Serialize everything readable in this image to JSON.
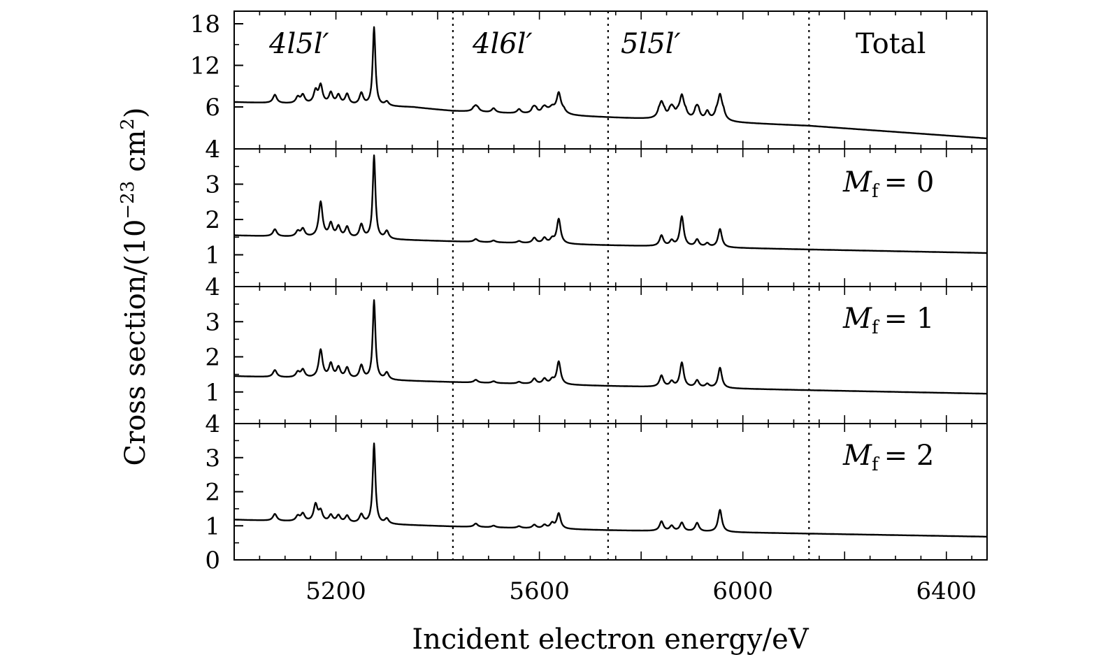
{
  "chart_data": {
    "type": "line",
    "xlabel": "Incident electron energy/eV",
    "ylabel": "Cross section/(10⁻²³ cm²)",
    "xlim": [
      5000,
      6480
    ],
    "xticks": [
      5200,
      5600,
      6000,
      6400
    ],
    "region_boundaries": [
      5430,
      5735,
      6130
    ],
    "region_labels": [
      "4l5l′",
      "4l6l′",
      "5l5l′"
    ],
    "line_color": "#000000",
    "panels": [
      {
        "name": "Total",
        "ylim": [
          4,
          19.5
        ],
        "yticks": [
          "4",
          "6",
          "12",
          "18"
        ],
        "tick_values": [
          4,
          6,
          12,
          18
        ],
        "baseline": [
          [
            5000,
            6.7
          ],
          [
            5430,
            5.8
          ],
          [
            5735,
            5.5
          ],
          [
            6130,
            5.1
          ],
          [
            6480,
            4.5
          ]
        ],
        "peaks": [
          [
            5080,
            1.2
          ],
          [
            5125,
            0.9
          ],
          [
            5135,
            1.2
          ],
          [
            5160,
            1.8
          ],
          [
            5170,
            2.6
          ],
          [
            5190,
            1.6
          ],
          [
            5205,
            1.3
          ],
          [
            5222,
            1.5
          ],
          [
            5250,
            1.7
          ],
          [
            5275,
            11.3
          ],
          [
            5300,
            0.6
          ],
          [
            5475,
            0.5
          ],
          [
            5510,
            0.2
          ],
          [
            5560,
            0.2
          ],
          [
            5590,
            0.5
          ],
          [
            5610,
            0.5
          ],
          [
            5625,
            0.4
          ],
          [
            5638,
            2.5
          ],
          [
            5840,
            1.4
          ],
          [
            5860,
            0.8
          ],
          [
            5880,
            2.4
          ],
          [
            5910,
            0.9
          ],
          [
            5930,
            0.4
          ],
          [
            5955,
            2.6
          ]
        ]
      },
      {
        "name": "M_f = 0",
        "ylim": [
          0.1,
          4
        ],
        "yticks": [
          "1",
          "2",
          "3",
          "4"
        ],
        "tick_values": [
          1,
          2,
          3,
          4
        ],
        "baseline": [
          [
            5000,
            1.55
          ],
          [
            5430,
            1.38
          ],
          [
            5735,
            1.27
          ],
          [
            6130,
            1.15
          ],
          [
            6480,
            1.05
          ]
        ],
        "peaks": [
          [
            5080,
            0.2
          ],
          [
            5125,
            0.15
          ],
          [
            5135,
            0.22
          ],
          [
            5170,
            1.0
          ],
          [
            5190,
            0.38
          ],
          [
            5205,
            0.3
          ],
          [
            5222,
            0.3
          ],
          [
            5250,
            0.38
          ],
          [
            5275,
            2.35
          ],
          [
            5300,
            0.22
          ],
          [
            5475,
            0.08
          ],
          [
            5510,
            0.05
          ],
          [
            5560,
            0.05
          ],
          [
            5590,
            0.15
          ],
          [
            5610,
            0.15
          ],
          [
            5625,
            0.12
          ],
          [
            5638,
            0.7
          ],
          [
            5840,
            0.3
          ],
          [
            5860,
            0.15
          ],
          [
            5880,
            0.85
          ],
          [
            5910,
            0.2
          ],
          [
            5930,
            0.1
          ],
          [
            5955,
            0.52
          ]
        ]
      },
      {
        "name": "M_f = 1",
        "ylim": [
          0.1,
          4
        ],
        "yticks": [
          "1",
          "2",
          "3",
          "4"
        ],
        "tick_values": [
          1,
          2,
          3,
          4
        ],
        "baseline": [
          [
            5000,
            1.45
          ],
          [
            5430,
            1.28
          ],
          [
            5735,
            1.17
          ],
          [
            6130,
            1.05
          ],
          [
            6480,
            0.95
          ]
        ],
        "peaks": [
          [
            5080,
            0.2
          ],
          [
            5125,
            0.15
          ],
          [
            5135,
            0.22
          ],
          [
            5170,
            0.8
          ],
          [
            5190,
            0.4
          ],
          [
            5205,
            0.3
          ],
          [
            5222,
            0.3
          ],
          [
            5250,
            0.38
          ],
          [
            5275,
            2.25
          ],
          [
            5300,
            0.2
          ],
          [
            5475,
            0.08
          ],
          [
            5510,
            0.05
          ],
          [
            5560,
            0.05
          ],
          [
            5590,
            0.15
          ],
          [
            5610,
            0.15
          ],
          [
            5625,
            0.12
          ],
          [
            5638,
            0.65
          ],
          [
            5840,
            0.32
          ],
          [
            5860,
            0.15
          ],
          [
            5880,
            0.7
          ],
          [
            5910,
            0.2
          ],
          [
            5930,
            0.1
          ],
          [
            5955,
            0.58
          ]
        ]
      },
      {
        "name": "M_f = 2",
        "ylim": [
          0,
          4
        ],
        "yticks": [
          "0",
          "1",
          "2",
          "3",
          "4"
        ],
        "tick_values": [
          0,
          1,
          2,
          3,
          4
        ],
        "baseline": [
          [
            5000,
            1.18
          ],
          [
            5430,
            0.98
          ],
          [
            5735,
            0.87
          ],
          [
            6130,
            0.77
          ],
          [
            6480,
            0.68
          ]
        ],
        "peaks": [
          [
            5080,
            0.2
          ],
          [
            5125,
            0.15
          ],
          [
            5135,
            0.22
          ],
          [
            5160,
            0.5
          ],
          [
            5170,
            0.3
          ],
          [
            5190,
            0.2
          ],
          [
            5205,
            0.2
          ],
          [
            5222,
            0.2
          ],
          [
            5250,
            0.25
          ],
          [
            5275,
            2.35
          ],
          [
            5300,
            0.15
          ],
          [
            5475,
            0.1
          ],
          [
            5510,
            0.05
          ],
          [
            5560,
            0.05
          ],
          [
            5590,
            0.1
          ],
          [
            5610,
            0.1
          ],
          [
            5625,
            0.15
          ],
          [
            5638,
            0.45
          ],
          [
            5840,
            0.28
          ],
          [
            5860,
            0.15
          ],
          [
            5880,
            0.25
          ],
          [
            5910,
            0.25
          ],
          [
            5955,
            0.65
          ]
        ]
      }
    ]
  },
  "labels": {
    "total": "Total",
    "mf_symbol": "M",
    "mf_subscript": "f",
    "mf_values": [
      "= 0",
      "= 1",
      "= 2"
    ],
    "ylabel_prefix": "Cross section/(10",
    "ylabel_exponent": "−23",
    "ylabel_unit": " cm",
    "ylabel_unit_exp": "2",
    "ylabel_suffix": ")"
  }
}
